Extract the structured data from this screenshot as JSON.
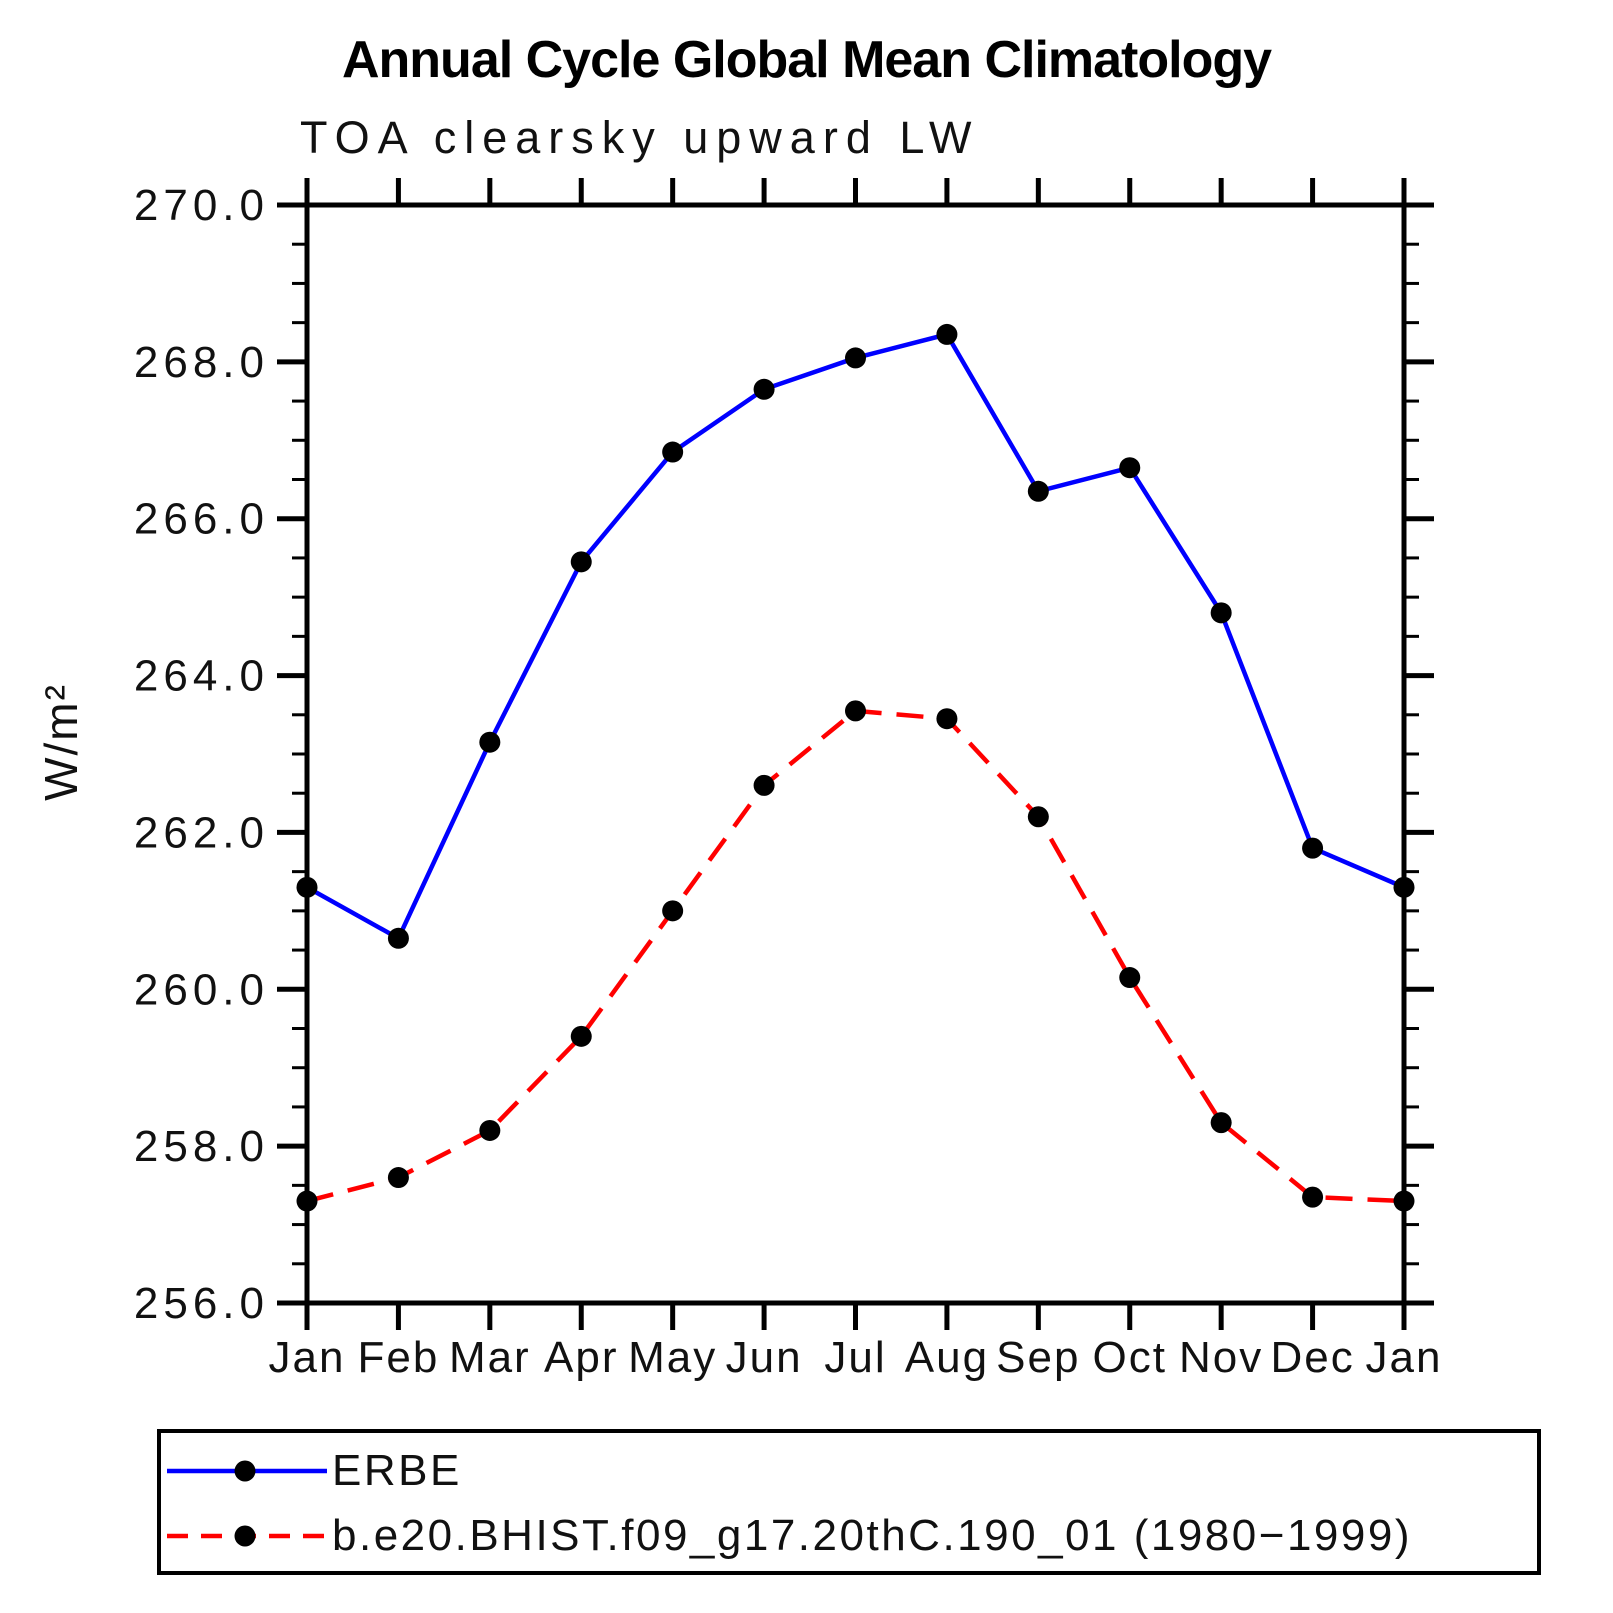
{
  "title": "Annual Cycle Global Mean Climatology",
  "subtitle": "TOA clearsky upward LW",
  "chart_data": {
    "type": "line",
    "categories": [
      "Jan",
      "Feb",
      "Mar",
      "Apr",
      "May",
      "Jun",
      "Jul",
      "Aug",
      "Sep",
      "Oct",
      "Nov",
      "Dec",
      "Jan"
    ],
    "series": [
      {
        "name": "ERBE",
        "color": "#0000ff",
        "line_style": "solid",
        "marker": "filled-black-circle",
        "values": [
          261.3,
          260.65,
          263.15,
          265.45,
          266.85,
          267.65,
          268.05,
          268.35,
          266.35,
          266.65,
          264.8,
          261.8,
          261.3
        ]
      },
      {
        "name": "b.e20.BHIST.f09_g17.20thC.190_01 (1980−1999)",
        "color": "#ff0000",
        "line_style": "dashed",
        "marker": "filled-black-circle",
        "values": [
          257.3,
          257.6,
          258.2,
          259.4,
          261.0,
          262.6,
          263.55,
          263.45,
          262.2,
          260.15,
          258.3,
          257.35,
          257.3
        ]
      }
    ],
    "xlabel": "",
    "ylabel": "W/m²",
    "ylim": [
      256.0,
      270.0
    ],
    "ytick_major_step": 2.0,
    "ytick_minor_step": 0.5,
    "ytick_decimals": 1,
    "grid": false,
    "legend_position": "bottom-left",
    "axis_color": "#000000",
    "marker_color": "#000000"
  }
}
